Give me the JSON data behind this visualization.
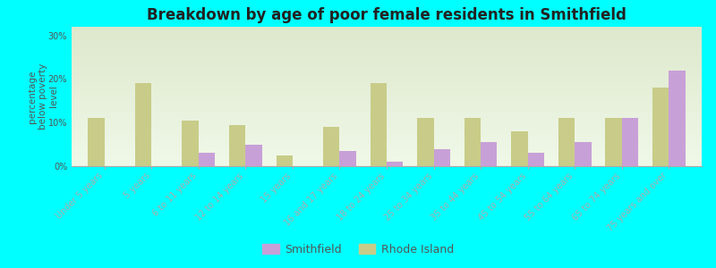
{
  "title": "Breakdown by age of poor female residents in Smithfield",
  "ylabel": "percentage\nbelow poverty\nlevel",
  "categories": [
    "Under 5 years",
    "5 years",
    "6 to 11 years",
    "12 to 14 years",
    "15 years",
    "16 and 17 years",
    "18 to 24 years",
    "25 to 34 years",
    "35 to 44 years",
    "45 to 54 years",
    "55 to 64 years",
    "65 to 74 years",
    "75 years and over"
  ],
  "smithfield": [
    0,
    0,
    3,
    5,
    0,
    3.5,
    1,
    4,
    5.5,
    3,
    5.5,
    11,
    22
  ],
  "rhode_island": [
    11,
    19,
    10.5,
    9.5,
    2.5,
    9,
    19,
    11,
    11,
    8,
    11,
    11,
    18
  ],
  "smithfield_color": "#c8a0d8",
  "rhode_island_color": "#c8cc88",
  "background_top": "#dde8cc",
  "background_bottom": "#f0f8e8",
  "outer_bg": "#00ffff",
  "bar_width": 0.35,
  "ylim": [
    0,
    32
  ],
  "yticks": [
    0,
    10,
    20,
    30
  ],
  "ytick_labels": [
    "0%",
    "10%",
    "20%",
    "30%"
  ],
  "title_fontsize": 12,
  "label_fontsize": 7.5,
  "tick_fontsize": 7
}
